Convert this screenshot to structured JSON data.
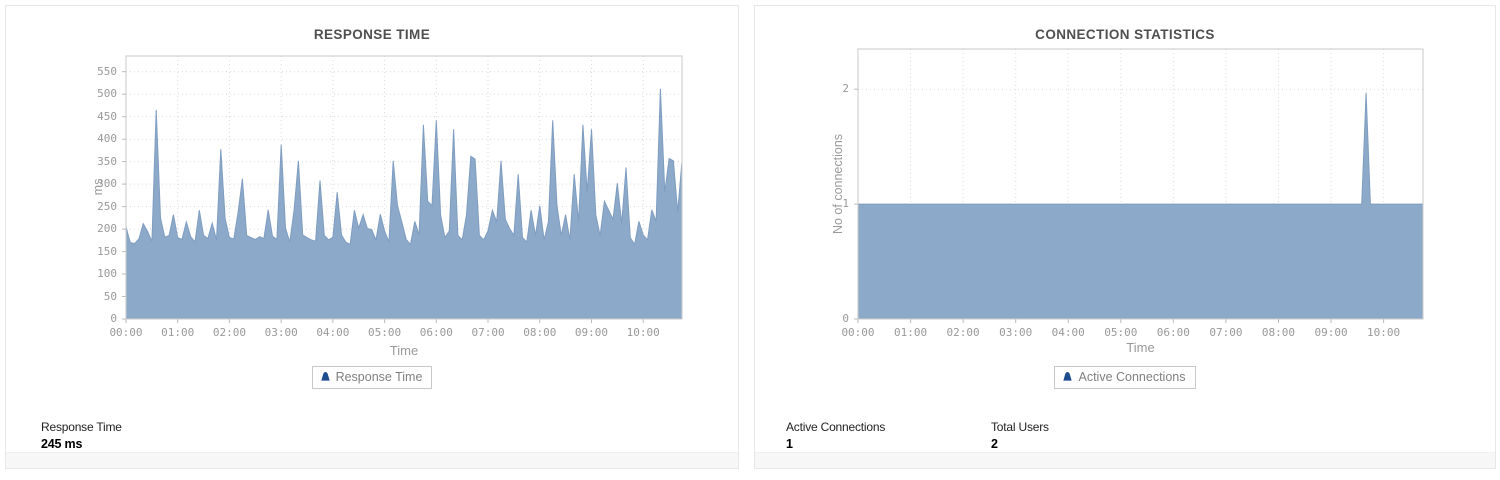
{
  "panels": [
    {
      "title": "RESPONSE TIME",
      "xlabel": "Time",
      "ylabel": "ms",
      "legend": {
        "label": "Response Time",
        "marker_color": "#1d4c8f",
        "marker_style": "color:#1d4c8f"
      },
      "stats": [
        {
          "label": "Response Time",
          "value": "245 ms"
        }
      ]
    },
    {
      "title": "CONNECTION STATISTICS",
      "xlabel": "Time",
      "ylabel": "No of connections",
      "legend": {
        "label": "Active Connections",
        "marker_color": "#1d4c8f",
        "marker_style": "color:#1d4c8f"
      },
      "stats": [
        {
          "label": "Active Connections",
          "value": "1"
        },
        {
          "label": "Total Users",
          "value": "2"
        }
      ]
    }
  ],
  "chart_data": [
    {
      "type": "area",
      "title": "RESPONSE TIME",
      "xlabel": "Time",
      "ylabel": "ms",
      "series_name": "Response Time",
      "x_unit": "minutes",
      "x_start": 0,
      "x_step": 5,
      "xlim": [
        0,
        645
      ],
      "ylim": [
        0,
        585
      ],
      "yticks": [
        0,
        50,
        100,
        150,
        200,
        250,
        300,
        350,
        400,
        450,
        500,
        550
      ],
      "xticks": [
        {
          "m": 0,
          "label": "00:00"
        },
        {
          "m": 60,
          "label": "01:00"
        },
        {
          "m": 120,
          "label": "02:00"
        },
        {
          "m": 180,
          "label": "03:00"
        },
        {
          "m": 240,
          "label": "04:00"
        },
        {
          "m": 300,
          "label": "05:00"
        },
        {
          "m": 360,
          "label": "06:00"
        },
        {
          "m": 420,
          "label": "07:00"
        },
        {
          "m": 480,
          "label": "08:00"
        },
        {
          "m": 540,
          "label": "09:00"
        },
        {
          "m": 600,
          "label": "10:00"
        }
      ],
      "grid": "dotted",
      "legend_position": "bottom",
      "fill_color": "#8da9c9",
      "line_color": "#7f9dc1",
      "grid_color": "#dadada",
      "border_color": "#c9c9c9",
      "tick_color": "#bbbbbb",
      "values": [
        205,
        170,
        168,
        178,
        212,
        195,
        172,
        465,
        225,
        182,
        186,
        232,
        181,
        177,
        216,
        183,
        171,
        242,
        186,
        179,
        213,
        176,
        378,
        224,
        181,
        178,
        237,
        312,
        186,
        181,
        177,
        183,
        179,
        243,
        184,
        177,
        388,
        202,
        171,
        243,
        352,
        187,
        181,
        176,
        173,
        308,
        186,
        176,
        182,
        282,
        187,
        171,
        166,
        242,
        202,
        232,
        201,
        199,
        176,
        233,
        196,
        171,
        352,
        252,
        216,
        177,
        166,
        217,
        187,
        432,
        262,
        252,
        442,
        232,
        181,
        196,
        422,
        186,
        176,
        232,
        362,
        356,
        186,
        176,
        196,
        242,
        216,
        352,
        222,
        201,
        186,
        322,
        181,
        171,
        242,
        186,
        252,
        176,
        216,
        442,
        252,
        186,
        232,
        176,
        322,
        216,
        432,
        282,
        422,
        232,
        186,
        262,
        242,
        222,
        302,
        212,
        337,
        181,
        166,
        217,
        187,
        176,
        243,
        217,
        512,
        282,
        357,
        352,
        238,
        352
      ]
    },
    {
      "type": "area",
      "title": "CONNECTION STATISTICS",
      "xlabel": "Time",
      "ylabel": "No of connections",
      "series_name": "Active Connections",
      "x_unit": "minutes",
      "x_start": 0,
      "x_step": 5,
      "xlim": [
        0,
        645
      ],
      "ylim": [
        0,
        2.35
      ],
      "yticks": [
        0,
        1,
        2
      ],
      "xticks": [
        {
          "m": 0,
          "label": "00:00"
        },
        {
          "m": 60,
          "label": "01:00"
        },
        {
          "m": 120,
          "label": "02:00"
        },
        {
          "m": 180,
          "label": "03:00"
        },
        {
          "m": 240,
          "label": "04:00"
        },
        {
          "m": 300,
          "label": "05:00"
        },
        {
          "m": 360,
          "label": "06:00"
        },
        {
          "m": 420,
          "label": "07:00"
        },
        {
          "m": 480,
          "label": "08:00"
        },
        {
          "m": 540,
          "label": "09:00"
        },
        {
          "m": 600,
          "label": "10:00"
        }
      ],
      "grid": "dotted",
      "legend_position": "bottom",
      "fill_color": "#8da9c9",
      "line_color": "#7f9dc1",
      "grid_color": "#dadada",
      "border_color": "#c9c9c9",
      "tick_color": "#bbbbbb",
      "values": [
        1,
        1,
        1,
        1,
        1,
        1,
        1,
        1,
        1,
        1,
        1,
        1,
        1,
        1,
        1,
        1,
        1,
        1,
        1,
        1,
        1,
        1,
        1,
        1,
        1,
        1,
        1,
        1,
        1,
        1,
        1,
        1,
        1,
        1,
        1,
        1,
        1,
        1,
        1,
        1,
        1,
        1,
        1,
        1,
        1,
        1,
        1,
        1,
        1,
        1,
        1,
        1,
        1,
        1,
        1,
        1,
        1,
        1,
        1,
        1,
        1,
        1,
        1,
        1,
        1,
        1,
        1,
        1,
        1,
        1,
        1,
        1,
        1,
        1,
        1,
        1,
        1,
        1,
        1,
        1,
        1,
        1,
        1,
        1,
        1,
        1,
        1,
        1,
        1,
        1,
        1,
        1,
        1,
        1,
        1,
        1,
        1,
        1,
        1,
        1,
        1,
        1,
        1,
        1,
        1,
        1,
        1,
        1,
        1,
        1,
        1,
        1,
        1,
        1,
        1,
        1,
        1.97,
        1,
        1,
        1,
        1,
        1,
        1,
        1,
        1,
        1,
        1,
        1,
        1,
        1
      ]
    }
  ]
}
